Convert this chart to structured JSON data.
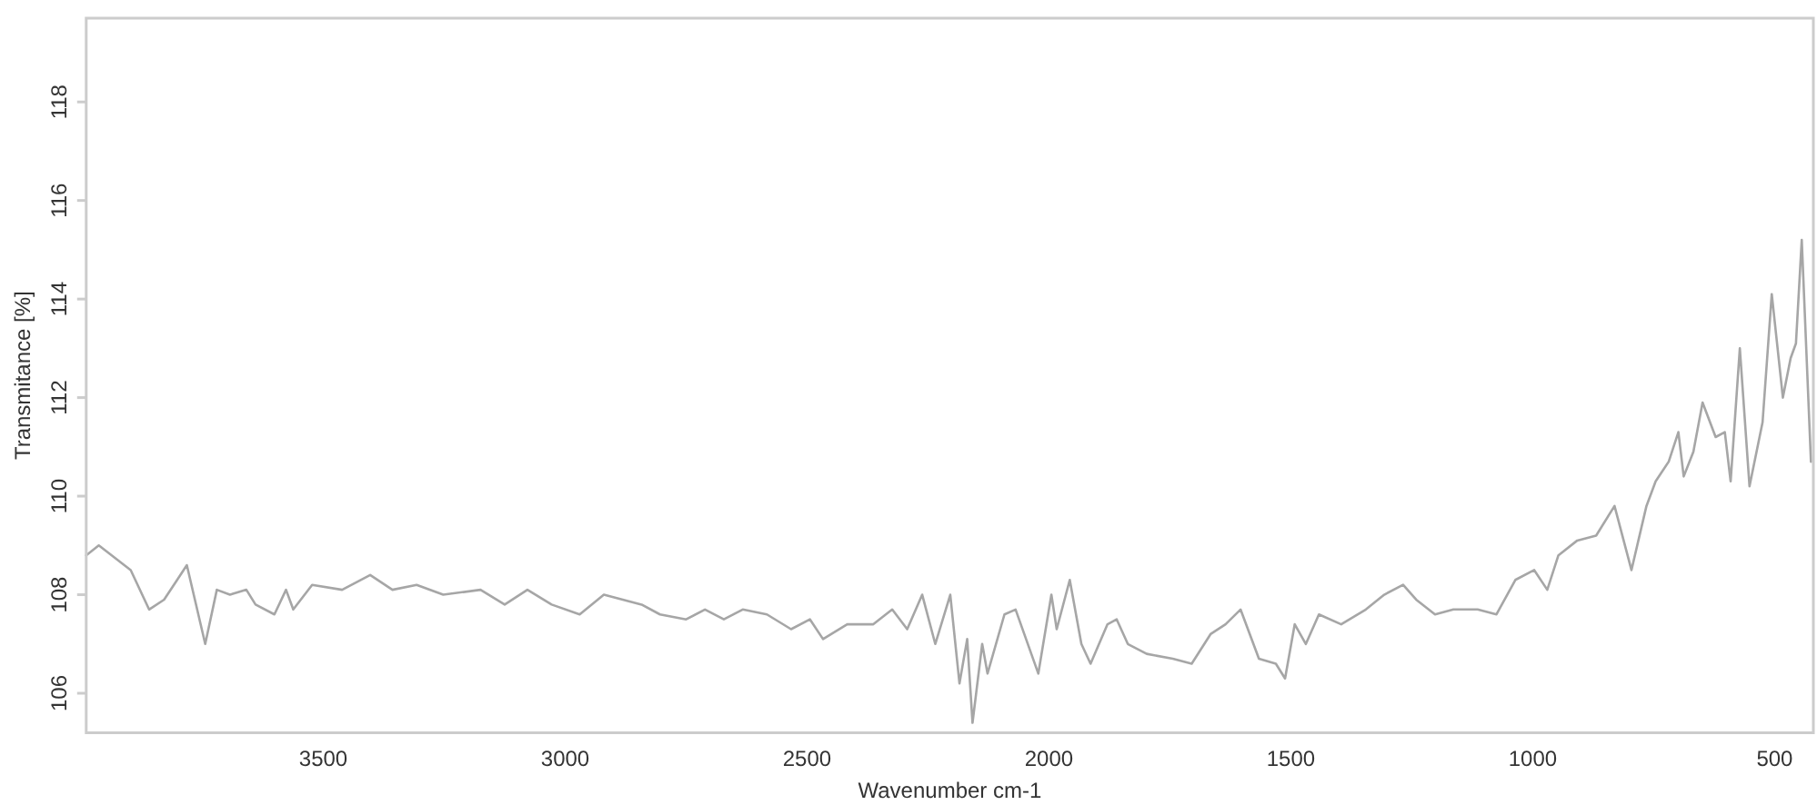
{
  "chart_data": {
    "type": "line",
    "xlabel": "Wavenumber cm-1",
    "ylabel": "Transmitance [%]",
    "xlim": [
      3990,
      420
    ],
    "xticks": [
      3500,
      3000,
      2500,
      2000,
      1500,
      1000,
      500
    ],
    "ylim": [
      105.2,
      119.7
    ],
    "yticks": [
      106,
      108,
      110,
      112,
      114,
      116,
      118
    ],
    "grid": false,
    "legend": false,
    "marker": "none",
    "line_style": "solid",
    "series": [
      {
        "color": "#a6a6a6",
        "x": [
          3990,
          3964,
          3898,
          3860,
          3829,
          3802,
          3782,
          3744,
          3720,
          3693,
          3659,
          3640,
          3601,
          3577,
          3562,
          3523,
          3461,
          3403,
          3357,
          3307,
          3252,
          3175,
          3125,
          3078,
          3028,
          2970,
          2920,
          2881,
          2842,
          2804,
          2750,
          2711,
          2672,
          2633,
          2583,
          2533,
          2494,
          2467,
          2417,
          2363,
          2324,
          2293,
          2262,
          2235,
          2204,
          2185,
          2169,
          2158,
          2138,
          2127,
          2092,
          2069,
          2022,
          1995,
          1984,
          1957,
          1933,
          1914,
          1879,
          1860,
          1837,
          1798,
          1744,
          1705,
          1666,
          1635,
          1604,
          1566,
          1531,
          1512,
          1492,
          1469,
          1442,
          1396,
          1345,
          1307,
          1268,
          1241,
          1202,
          1164,
          1114,
          1075,
          1036,
          997,
          970,
          947,
          908,
          869,
          831,
          796,
          765,
          746,
          719,
          699,
          688,
          668,
          649,
          622,
          603,
          591,
          572,
          552,
          525,
          506,
          483,
          467,
          456,
          444,
          425
        ],
        "values": [
          108.8,
          109.0,
          108.5,
          107.7,
          107.9,
          108.3,
          108.6,
          107.0,
          108.1,
          108.0,
          108.1,
          107.8,
          107.6,
          108.1,
          107.7,
          108.2,
          108.1,
          108.4,
          108.1,
          108.2,
          108.0,
          108.1,
          107.8,
          108.1,
          107.8,
          107.6,
          108.0,
          107.9,
          107.8,
          107.6,
          107.5,
          107.7,
          107.5,
          107.7,
          107.6,
          107.3,
          107.5,
          107.1,
          107.4,
          107.4,
          107.7,
          107.3,
          108.0,
          107.0,
          108.0,
          106.2,
          107.1,
          105.4,
          107.0,
          106.4,
          107.6,
          107.7,
          106.4,
          108.0,
          107.3,
          108.3,
          107.0,
          106.6,
          107.4,
          107.5,
          107.0,
          106.8,
          106.7,
          106.6,
          107.2,
          107.4,
          107.7,
          106.7,
          106.6,
          106.3,
          107.4,
          107.0,
          107.6,
          107.4,
          107.7,
          108.0,
          108.2,
          107.9,
          107.6,
          107.7,
          107.7,
          107.6,
          108.3,
          108.5,
          108.1,
          108.8,
          109.1,
          109.2,
          109.8,
          108.5,
          109.8,
          110.3,
          110.7,
          111.3,
          110.4,
          110.9,
          111.9,
          111.2,
          111.3,
          110.3,
          113.0,
          110.2,
          111.5,
          114.1,
          112.0,
          112.8,
          113.1,
          115.2,
          110.7
        ]
      }
    ]
  }
}
